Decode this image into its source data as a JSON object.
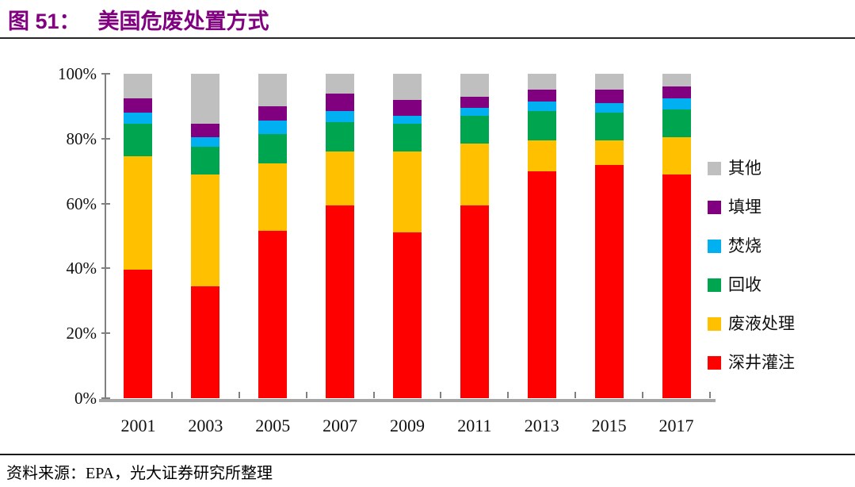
{
  "header": {
    "label": "图 51：",
    "title": "美国危废处置方式"
  },
  "footer": {
    "source": "资料来源：EPA，光大证券研究所整理"
  },
  "chart_data": {
    "type": "bar",
    "stacked": true,
    "title": "美国危废处置方式",
    "unit": "percent-share-of-total",
    "categories": [
      "2001",
      "2003",
      "2005",
      "2007",
      "2009",
      "2011",
      "2013",
      "2015",
      "2017"
    ],
    "series": [
      {
        "name": "深井灌注",
        "color": "#FF0000",
        "values": [
          39.5,
          34.5,
          51.5,
          59.5,
          51.0,
          59.5,
          70.0,
          72.0,
          69.0
        ]
      },
      {
        "name": "废液处理",
        "color": "#FFC000",
        "values": [
          35.0,
          34.5,
          21.0,
          16.5,
          25.0,
          19.0,
          9.5,
          7.5,
          11.5
        ]
      },
      {
        "name": "回收",
        "color": "#00A64F",
        "values": [
          10.0,
          8.5,
          9.0,
          9.0,
          8.5,
          8.5,
          9.0,
          8.5,
          8.5
        ]
      },
      {
        "name": "焚烧",
        "color": "#00B0F0",
        "values": [
          3.5,
          3.0,
          4.0,
          3.5,
          2.5,
          2.5,
          3.0,
          3.0,
          3.5
        ]
      },
      {
        "name": "填埋",
        "color": "#800080",
        "values": [
          4.5,
          4.0,
          4.5,
          5.5,
          5.0,
          3.5,
          3.5,
          4.0,
          3.5
        ]
      },
      {
        "name": "其他",
        "color": "#BFBFBF",
        "values": [
          7.5,
          15.5,
          10.0,
          6.0,
          8.0,
          7.0,
          5.0,
          5.0,
          4.0
        ]
      }
    ],
    "y_axis": {
      "min": 0,
      "max": 100,
      "ticks": [
        "0%",
        "20%",
        "40%",
        "60%",
        "80%",
        "100%"
      ]
    },
    "x_axis": {
      "label": "",
      "tick_style": "boundary-ticks-inside"
    },
    "legend": {
      "position": "right",
      "order_top_to_bottom": [
        "其他",
        "填埋",
        "焚烧",
        "回收",
        "废液处理",
        "深井灌注"
      ]
    },
    "grid": false,
    "axis_colors": {
      "y_axis": "#808080",
      "x_axis": "#A6A6A6"
    },
    "title_color": "#800080"
  }
}
